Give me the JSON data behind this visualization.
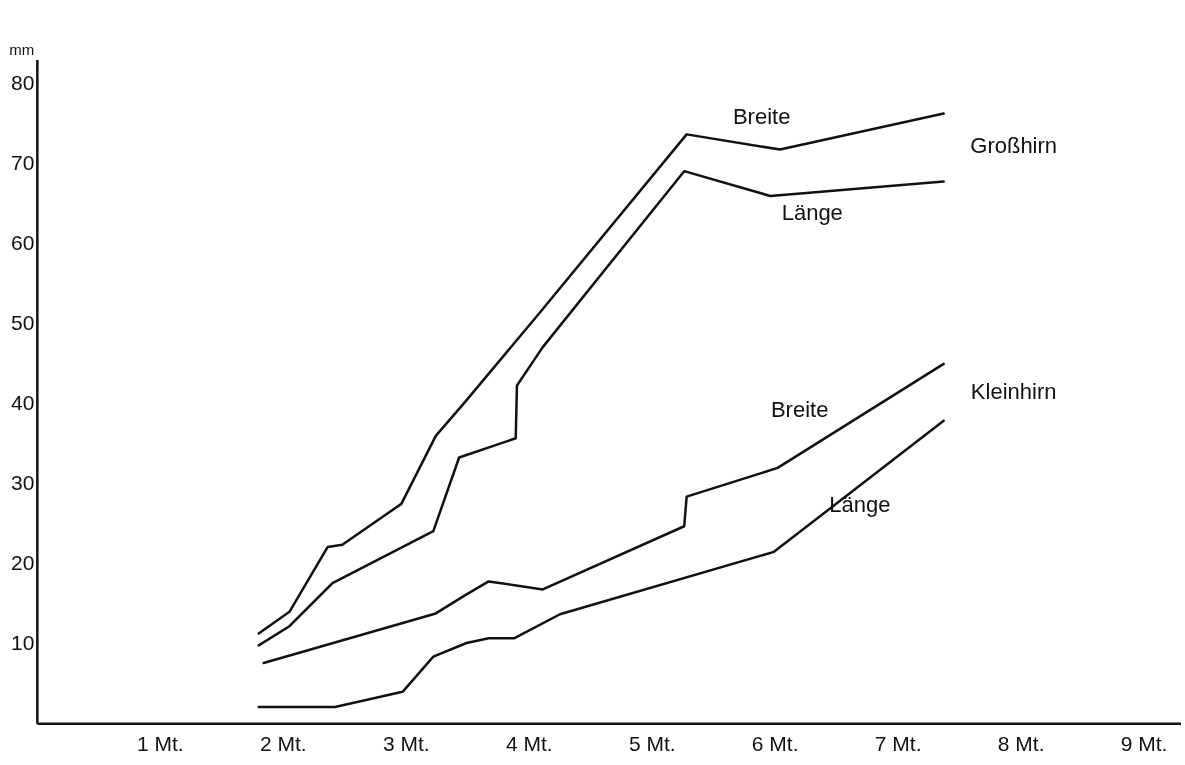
{
  "chart_data": {
    "type": "line",
    "ylabel": "mm",
    "xlim": [
      0,
      9.3
    ],
    "ylim": [
      0,
      83
    ],
    "xticks": [
      {
        "value": 1,
        "label": "1 Mt."
      },
      {
        "value": 2,
        "label": "2 Mt."
      },
      {
        "value": 3,
        "label": "3 Mt."
      },
      {
        "value": 4,
        "label": "4 Mt."
      },
      {
        "value": 5,
        "label": "5 Mt."
      },
      {
        "value": 6,
        "label": "6 Mt."
      },
      {
        "value": 7,
        "label": "7 Mt."
      },
      {
        "value": 8,
        "label": "8 Mt."
      },
      {
        "value": 9,
        "label": "9 Mt."
      }
    ],
    "yticks": [
      10,
      20,
      30,
      40,
      50,
      60,
      70,
      80
    ],
    "grid": false,
    "legend": false,
    "marker": "none",
    "line_style": "solid",
    "series": [
      {
        "name": "Breite",
        "color": "#111111",
        "x": [
          1.8,
          2.05,
          2.36,
          2.48,
          2.96,
          3.24,
          3.47,
          4.08,
          5.28,
          6.04,
          7.37
        ],
        "values": [
          11.3,
          14,
          22.1,
          22.4,
          27.5,
          36,
          40.1,
          51.3,
          73.7,
          71.8,
          76.3
        ]
      },
      {
        "name": "Länge",
        "color": "#111111",
        "x": [
          1.8,
          2.05,
          2.4,
          3.22,
          3.43,
          3.89,
          3.9,
          4.11,
          5.26,
          5.96,
          7.37
        ],
        "values": [
          9.8,
          12.2,
          17.6,
          24.1,
          33.3,
          35.7,
          42.3,
          47.1,
          69.1,
          66,
          67.8
        ]
      },
      {
        "name": "Breite",
        "color": "#111111",
        "x": [
          1.84,
          3.24,
          3.47,
          3.67,
          4.11,
          5.26,
          5.28,
          6.02,
          7.37
        ],
        "values": [
          7.6,
          13.8,
          16,
          17.8,
          16.8,
          24.7,
          28.4,
          32,
          45
        ]
      },
      {
        "name": "Länge",
        "color": "#111111",
        "x": [
          1.8,
          2.42,
          2.97,
          3.22,
          3.49,
          3.67,
          3.88,
          4.25,
          5.99,
          7.37
        ],
        "values": [
          2.1,
          2.1,
          4,
          8.4,
          10.1,
          10.7,
          10.7,
          13.7,
          21.5,
          37.9
        ]
      }
    ],
    "annotations": [
      "Großhirn",
      "Kleinhirn"
    ]
  }
}
